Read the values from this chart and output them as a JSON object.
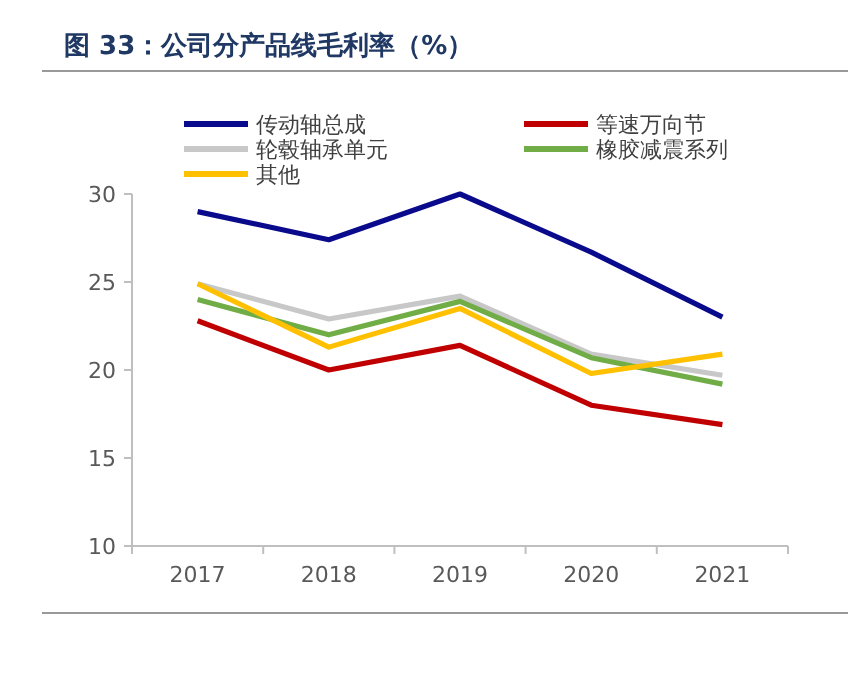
{
  "chart_data": {
    "type": "line",
    "title": "图 33：公司分产品线毛利率（%）",
    "categories": [
      "2017",
      "2018",
      "2019",
      "2020",
      "2021"
    ],
    "series": [
      {
        "name": "传动轴总成",
        "color": "#0a0a8c",
        "values": [
          29.0,
          27.4,
          30.0,
          26.7,
          23.0
        ]
      },
      {
        "name": "等速万向节",
        "color": "#c00000",
        "values": [
          22.8,
          20.0,
          21.4,
          18.0,
          16.9
        ]
      },
      {
        "name": "轮毂轴承单元",
        "color": "#c8c8c8",
        "values": [
          24.9,
          22.9,
          24.2,
          20.9,
          19.7
        ]
      },
      {
        "name": "橡胶减震系列",
        "color": "#70ad47",
        "values": [
          24.0,
          22.0,
          23.9,
          20.7,
          19.2
        ]
      },
      {
        "name": "其他",
        "color": "#ffc000",
        "values": [
          24.9,
          21.3,
          23.5,
          19.8,
          20.9
        ]
      }
    ],
    "ylim": [
      10,
      30
    ],
    "yticks": [
      10,
      15,
      20,
      25,
      30
    ],
    "grid": false,
    "legend": "top",
    "marker": "none",
    "line_style": "solid"
  }
}
